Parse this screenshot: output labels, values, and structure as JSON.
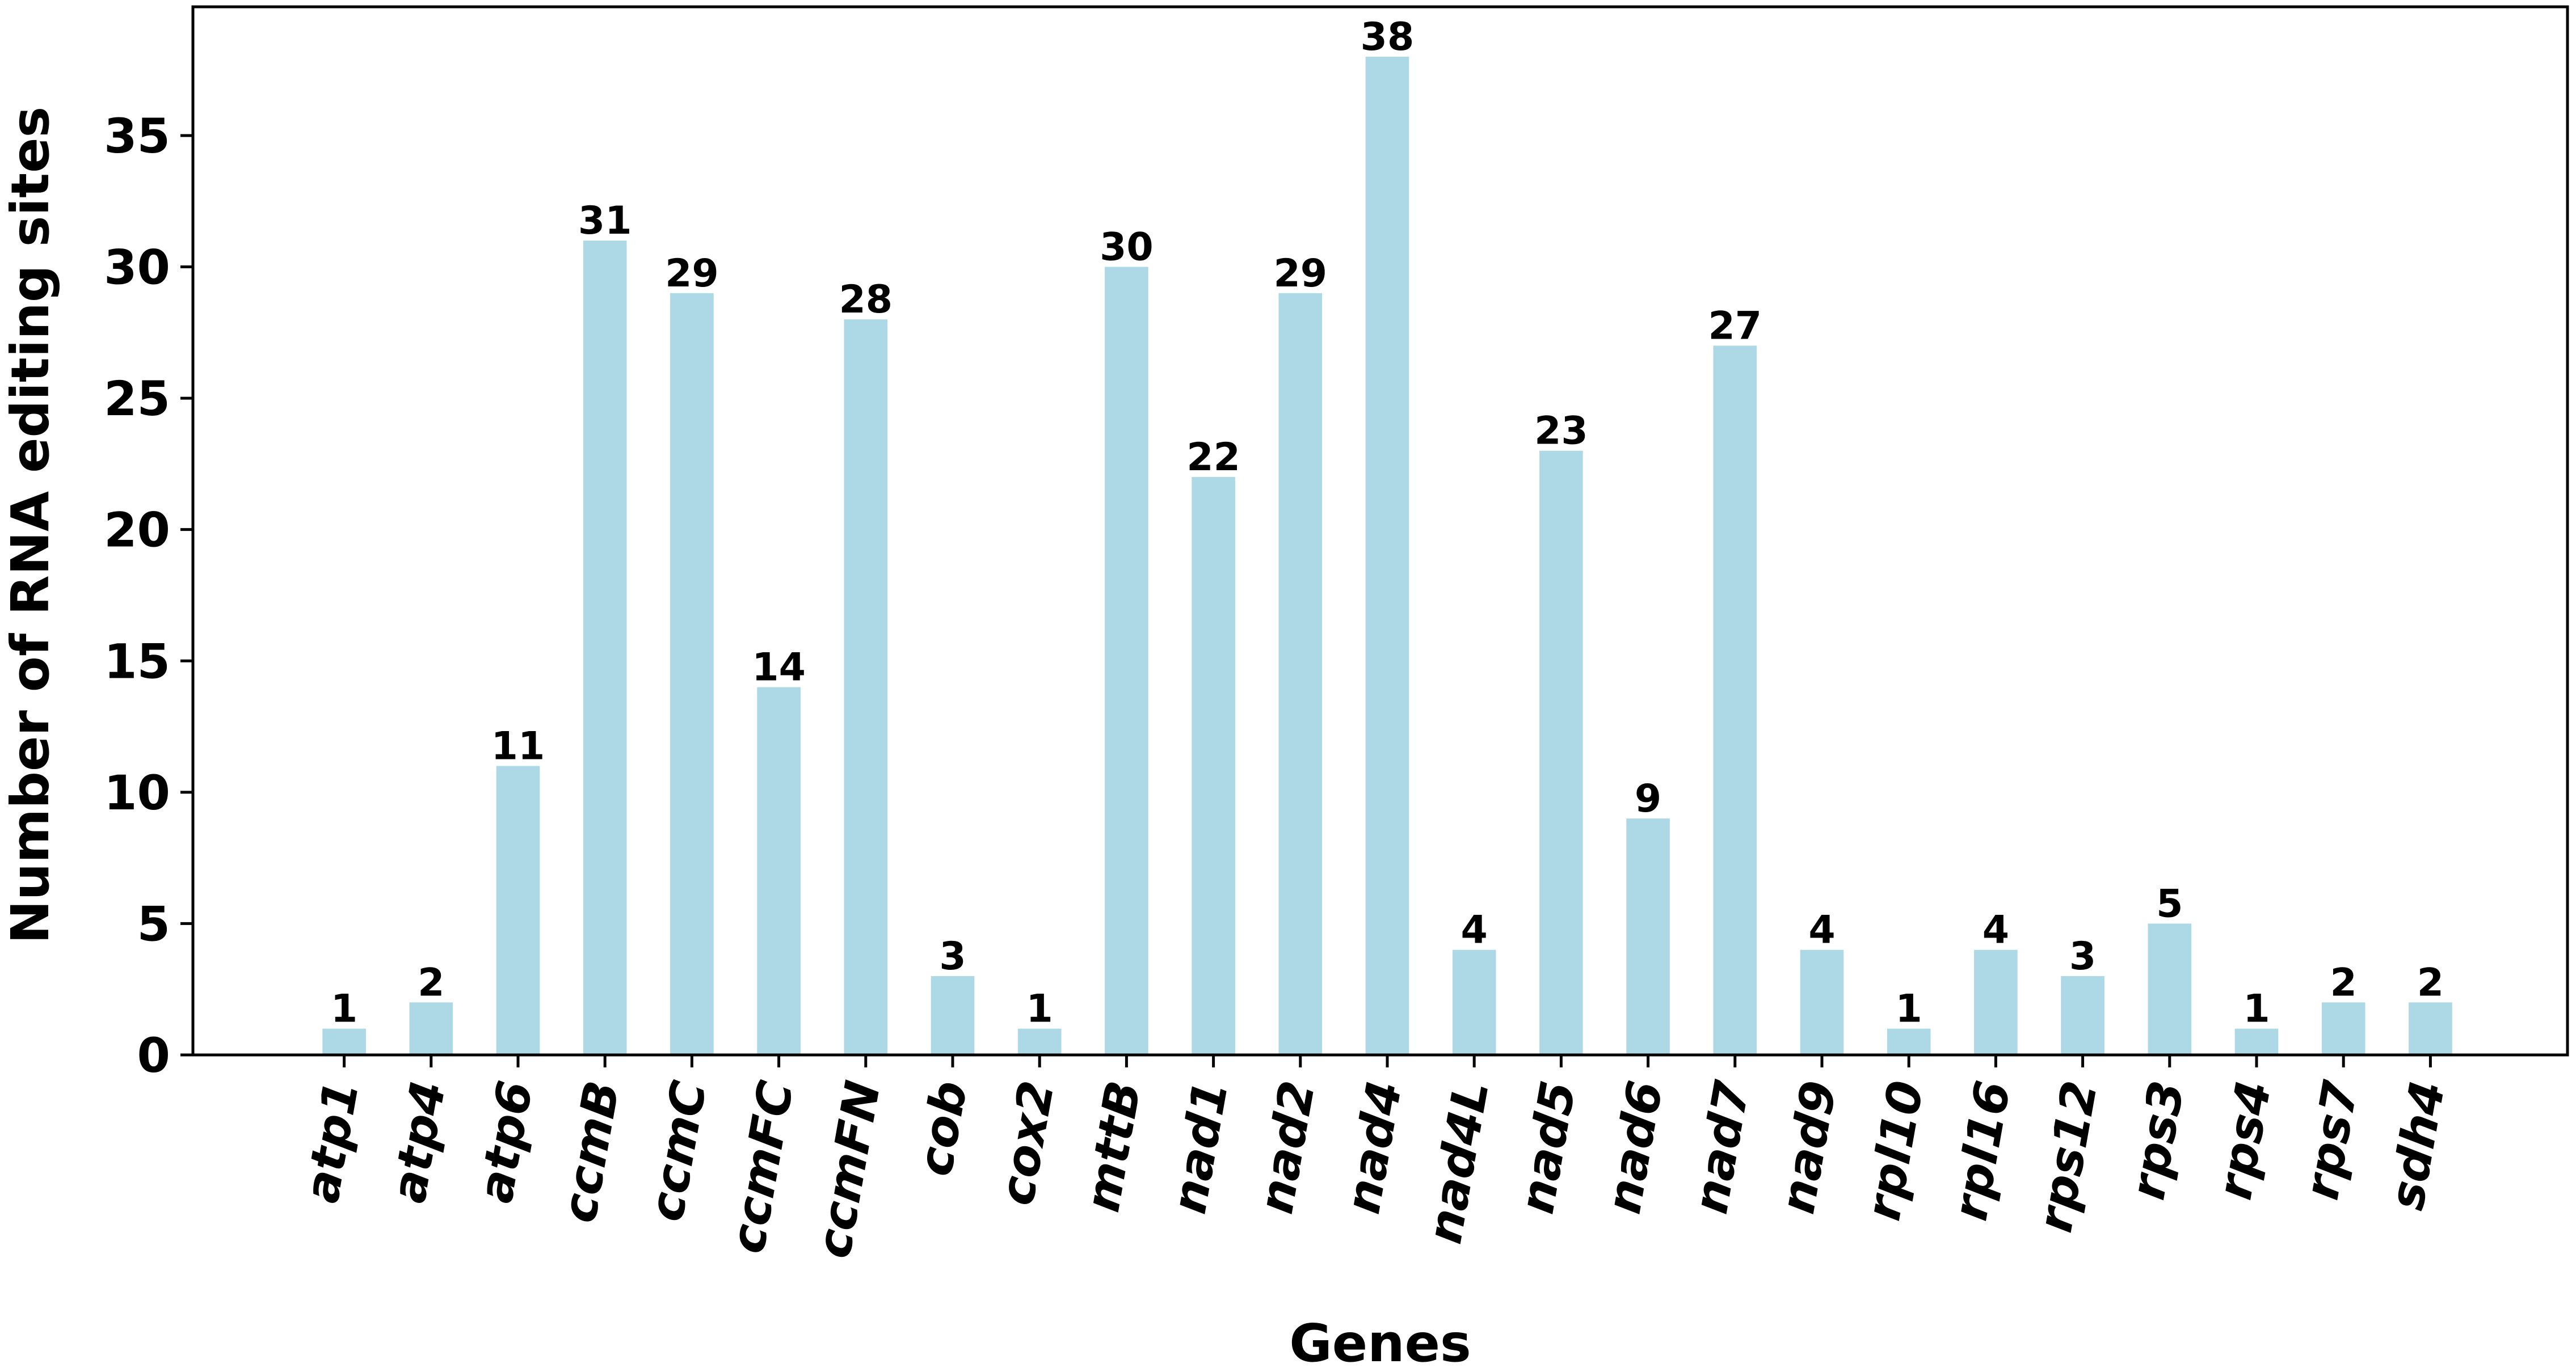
{
  "chart_data": {
    "type": "bar",
    "title": "",
    "xlabel": "Genes",
    "ylabel": "Number of RNA editing sites",
    "categories": [
      "atp1",
      "atp4",
      "atp6",
      "ccmB",
      "ccmC",
      "ccmFC",
      "ccmFN",
      "cob",
      "cox2",
      "mttB",
      "nad1",
      "nad2",
      "nad4",
      "nad4L",
      "nad5",
      "nad6",
      "nad7",
      "nad9",
      "rpl10",
      "rpl16",
      "rps12",
      "rps3",
      "rps4",
      "rps7",
      "sdh4"
    ],
    "values": [
      1,
      2,
      11,
      31,
      29,
      14,
      28,
      3,
      1,
      30,
      22,
      29,
      38,
      4,
      23,
      9,
      27,
      4,
      1,
      4,
      3,
      5,
      1,
      2,
      2
    ],
    "data_labels": [
      "1",
      "2",
      "11",
      "31",
      "29",
      "14",
      "28",
      "3",
      "1",
      "30",
      "22",
      "29",
      "38",
      "4",
      "23",
      "9",
      "27",
      "4",
      "1",
      "4",
      "3",
      "5",
      "1",
      "2",
      "2"
    ],
    "ylim": [
      0,
      39.9
    ],
    "yticks": [
      0,
      5,
      10,
      15,
      20,
      25,
      30,
      35
    ],
    "ytick_labels": [
      "0",
      "5",
      "10",
      "15",
      "20",
      "25",
      "30",
      "35"
    ],
    "grid": false,
    "legend": "none",
    "colors": {
      "bar": "#add8e6",
      "axis": "#000000"
    }
  }
}
